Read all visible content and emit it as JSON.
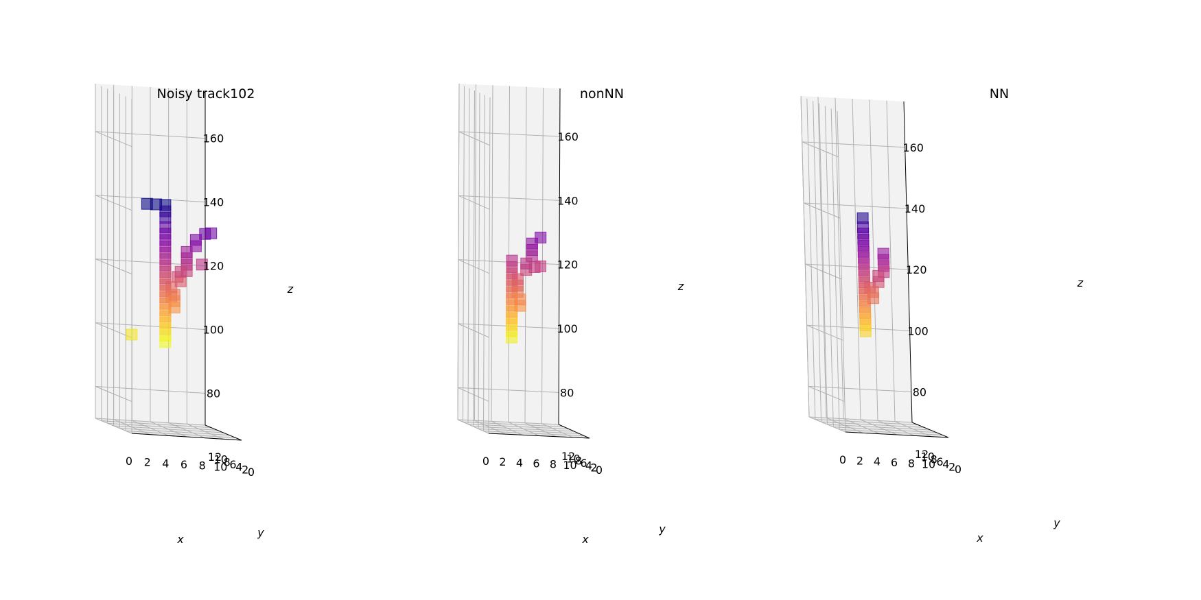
{
  "figure": {
    "background": "#ffffff",
    "pane_color": "#f2f2f2",
    "grid_color": "#b0b0b0",
    "colormap": "plasma",
    "colormap_stops": [
      "#0d0887",
      "#5302a3",
      "#8b0aa5",
      "#b83289",
      "#db5c68",
      "#f48849",
      "#febd2a",
      "#f0f921"
    ]
  },
  "chart_data": [
    {
      "type": "scatter3d",
      "title": "Noisy track102",
      "xlabel": "x",
      "ylabel": "y",
      "zlabel": "z",
      "xticks": [
        "0",
        "2",
        "4",
        "6",
        "8",
        "10"
      ],
      "yticks": [
        "0",
        "2",
        "4",
        "6",
        "8",
        "10",
        "12"
      ],
      "zticks": [
        "80",
        "100",
        "120",
        "140",
        "160"
      ],
      "xlim": [
        0,
        12
      ],
      "ylim": [
        0,
        12
      ],
      "zlim": [
        70,
        175
      ],
      "grid": true,
      "marker": "square",
      "color_by": "z",
      "points": [
        [
          0,
          0,
          101
        ],
        [
          2,
          1,
          142
        ],
        [
          3,
          1,
          142
        ],
        [
          4,
          1,
          142
        ],
        [
          4,
          1,
          140
        ],
        [
          4,
          1,
          138
        ],
        [
          4,
          1,
          135
        ],
        [
          4,
          1,
          133
        ],
        [
          4,
          1,
          131
        ],
        [
          4,
          1,
          129
        ],
        [
          4,
          1,
          127
        ],
        [
          4,
          1,
          125
        ],
        [
          4,
          1,
          123
        ],
        [
          4,
          1,
          121
        ],
        [
          4,
          1,
          119
        ],
        [
          4,
          1,
          117
        ],
        [
          4,
          1,
          115
        ],
        [
          4,
          1,
          113
        ],
        [
          4,
          1,
          111
        ],
        [
          4,
          1,
          109
        ],
        [
          4,
          1,
          107
        ],
        [
          4,
          1,
          105
        ],
        [
          4,
          1,
          103
        ],
        [
          4,
          1,
          101
        ],
        [
          4,
          1,
          99
        ],
        [
          5,
          1,
          114
        ],
        [
          5,
          1,
          112
        ],
        [
          5,
          1,
          110
        ],
        [
          5,
          2,
          113
        ],
        [
          5,
          2,
          116
        ],
        [
          6,
          2,
          118
        ],
        [
          6,
          2,
          121
        ],
        [
          6,
          3,
          119
        ],
        [
          7,
          3,
          121
        ],
        [
          7,
          3,
          123
        ],
        [
          7,
          3,
          125
        ],
        [
          7,
          3,
          127
        ],
        [
          8,
          3,
          129
        ],
        [
          8,
          3,
          131
        ],
        [
          9,
          3,
          133
        ],
        [
          9,
          4,
          123
        ],
        [
          10,
          4,
          133
        ]
      ]
    },
    {
      "type": "scatter3d",
      "title": "nonNN",
      "xlabel": "x",
      "ylabel": "y",
      "zlabel": "z",
      "xticks": [
        "0",
        "2",
        "4",
        "6",
        "8",
        "10"
      ],
      "yticks": [
        "0",
        "2",
        "4",
        "6",
        "8",
        "10",
        "12"
      ],
      "zticks": [
        "80",
        "100",
        "120",
        "140",
        "160"
      ],
      "xlim": [
        0,
        12
      ],
      "ylim": [
        0,
        12
      ],
      "zlim": [
        70,
        175
      ],
      "grid": true,
      "marker": "square",
      "color_by": "z",
      "points": [
        [
          3,
          1,
          124
        ],
        [
          3,
          1,
          122
        ],
        [
          3,
          1,
          120
        ],
        [
          3,
          1,
          118
        ],
        [
          3,
          1,
          116
        ],
        [
          3,
          1,
          114
        ],
        [
          3,
          1,
          112
        ],
        [
          3,
          1,
          110
        ],
        [
          3,
          1,
          108
        ],
        [
          3,
          1,
          106
        ],
        [
          3,
          1,
          104
        ],
        [
          3,
          1,
          102
        ],
        [
          3,
          1,
          100
        ],
        [
          4,
          1,
          110
        ],
        [
          4,
          1,
          112
        ],
        [
          4,
          2,
          114
        ],
        [
          4,
          2,
          116
        ],
        [
          4,
          2,
          118
        ],
        [
          5,
          2,
          121
        ],
        [
          5,
          2,
          123
        ],
        [
          6,
          2,
          122
        ],
        [
          6,
          3,
          125
        ],
        [
          6,
          3,
          127
        ],
        [
          6,
          3,
          129
        ],
        [
          7,
          3,
          131
        ],
        [
          7,
          3,
          122
        ]
      ]
    },
    {
      "type": "scatter3d",
      "title": "NN",
      "xlabel": "x",
      "ylabel": "y",
      "zlabel": "z",
      "xticks": [
        "0",
        "2",
        "4",
        "6",
        "8",
        "10"
      ],
      "yticks": [
        "0",
        "2",
        "4",
        "6",
        "8",
        "10",
        "12"
      ],
      "zticks": [
        "80",
        "100",
        "120",
        "140",
        "160"
      ],
      "xlim": [
        0,
        12
      ],
      "ylim": [
        0,
        12
      ],
      "zlim": [
        70,
        175
      ],
      "grid": true,
      "marker": "square",
      "color_by": "z",
      "points": [
        [
          3,
          1,
          140
        ],
        [
          3,
          1,
          137
        ],
        [
          3,
          1,
          135
        ],
        [
          3,
          1,
          133
        ],
        [
          3,
          1,
          131
        ],
        [
          3,
          1,
          129
        ],
        [
          3,
          1,
          127
        ],
        [
          3,
          1,
          125
        ],
        [
          3,
          1,
          123
        ],
        [
          3,
          1,
          121
        ],
        [
          3,
          1,
          119
        ],
        [
          3,
          1,
          117
        ],
        [
          3,
          1,
          115
        ],
        [
          3,
          1,
          113
        ],
        [
          3,
          1,
          111
        ],
        [
          3,
          1,
          109
        ],
        [
          3,
          1,
          107
        ],
        [
          3,
          1,
          105
        ],
        [
          3,
          1,
          103
        ],
        [
          4,
          1,
          116
        ],
        [
          4,
          1,
          114
        ],
        [
          4,
          2,
          117
        ],
        [
          5,
          2,
          119
        ],
        [
          5,
          2,
          121
        ],
        [
          6,
          3,
          122
        ],
        [
          6,
          3,
          124
        ],
        [
          6,
          3,
          126
        ],
        [
          6,
          3,
          128
        ]
      ]
    }
  ]
}
